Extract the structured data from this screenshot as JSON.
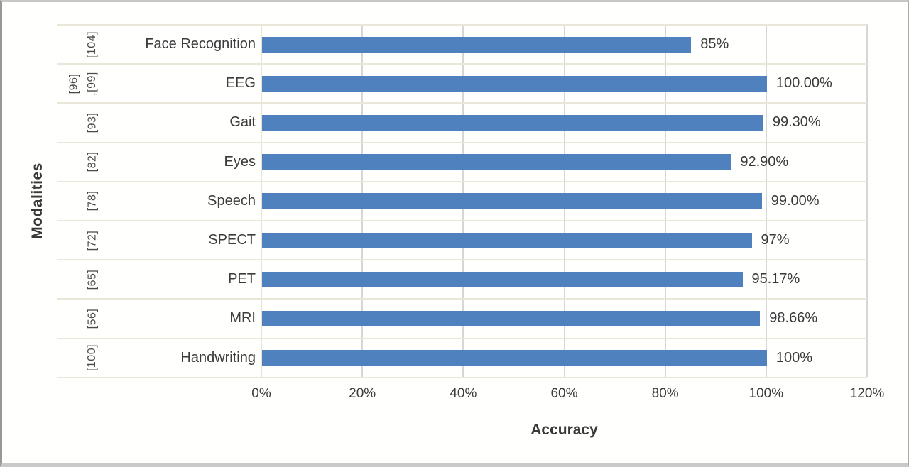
{
  "chart_data": {
    "type": "bar",
    "orientation": "horizontal",
    "title": "",
    "xlabel": "Accuracy",
    "ylabel": "Modalities",
    "xlim": [
      0,
      120
    ],
    "x_ticks": [
      "0%",
      "20%",
      "40%",
      "60%",
      "80%",
      "100%",
      "120%"
    ],
    "x_tick_values": [
      0,
      20,
      40,
      60,
      80,
      100,
      120
    ],
    "grid": "vertical-only",
    "legend": "none",
    "bar_color": "#4e81bd",
    "gridline_color": "#d6d6d6",
    "separator_color": "#eae6d8",
    "text_color": "#3c3c3c",
    "categories": [
      "Face Recognition",
      "EEG",
      "Gait",
      "Eyes",
      "Speech",
      "SPECT",
      "PET",
      "MRI",
      "Handwriting"
    ],
    "values": [
      85,
      100,
      99.3,
      92.9,
      99,
      97,
      95.17,
      98.66,
      100
    ],
    "value_labels": [
      "85%",
      "100.00%",
      "99.30%",
      "92.90%",
      "99.00%",
      "97%",
      "95.17%",
      "98.66%",
      "100%"
    ],
    "citations": [
      [
        "[104]"
      ],
      [
        "[96]",
        ",[99]"
      ],
      [
        "[93]"
      ],
      [
        "[82]"
      ],
      [
        "[78]"
      ],
      [
        "[72]"
      ],
      [
        "[65]"
      ],
      [
        "[56]"
      ],
      [
        "[100]"
      ]
    ]
  }
}
